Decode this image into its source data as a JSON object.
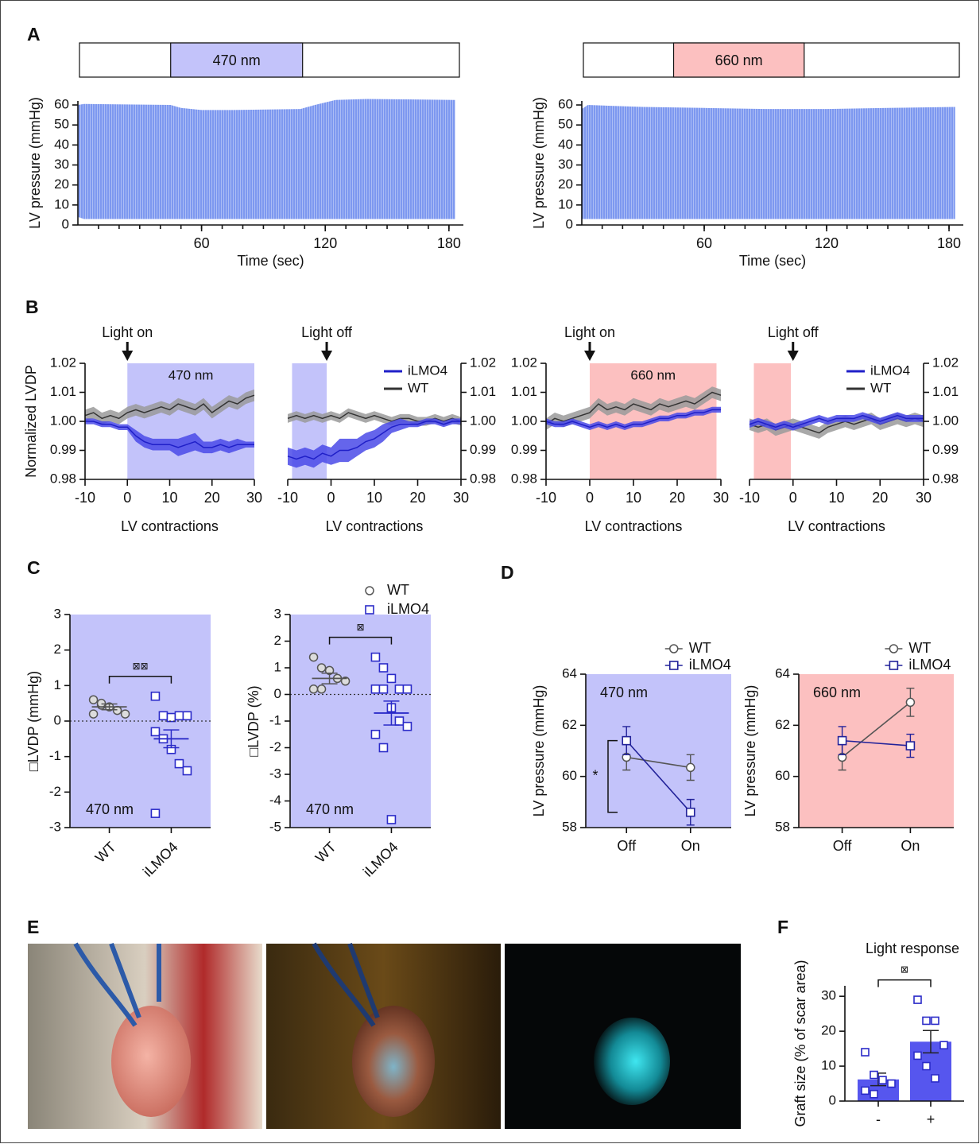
{
  "figure": {
    "photo_panel": "E"
  },
  "chart_data": [
    {
      "type": "area",
      "panel": "A",
      "ylabel": "LV pressure (mmHg)",
      "xlabel": "Time (sec)",
      "xlim": [
        0,
        187
      ],
      "xticks": [
        60,
        120,
        180
      ],
      "minor_step": 10,
      "ylim": [
        0,
        62
      ],
      "yticks": [
        0,
        10,
        20,
        30,
        40,
        50,
        60
      ],
      "light": {
        "label": "470 nm",
        "start": 45,
        "end": 109,
        "color": "#c3c3fa"
      },
      "color": "#7d98f0",
      "x": [
        0,
        3,
        45,
        50,
        60,
        75,
        95,
        108,
        115,
        125,
        140,
        160,
        183
      ],
      "upper": [
        60,
        60.5,
        60,
        58.5,
        57.5,
        57.5,
        57.8,
        58,
        60,
        62.5,
        63,
        62.8,
        62.5
      ],
      "lower": [
        4,
        3,
        3,
        3,
        3,
        3,
        3,
        3,
        3,
        3,
        3,
        3,
        3
      ]
    },
    {
      "type": "area",
      "ylabel": "LV pressure (mmHg)",
      "xlabel": "Time (sec)",
      "xlim": [
        0,
        187
      ],
      "xticks": [
        60,
        120,
        180
      ],
      "minor_step": 10,
      "ylim": [
        0,
        62
      ],
      "yticks": [
        0,
        10,
        20,
        30,
        40,
        50,
        60
      ],
      "light": {
        "label": "660 nm",
        "start": 45,
        "end": 109,
        "color": "#fcc0c0"
      },
      "color": "#7d98f0",
      "x": [
        0,
        3,
        30,
        60,
        90,
        120,
        150,
        183
      ],
      "upper": [
        58,
        60,
        59,
        58.5,
        58,
        58,
        58.5,
        59
      ],
      "lower": [
        3,
        3,
        3,
        3,
        3,
        3,
        3,
        3
      ]
    },
    {
      "type": "line",
      "panel": "B",
      "ylabel": "Normalized LVDP",
      "xlabel": "LV contractions",
      "annotation": "Light on",
      "arrow_at": 0,
      "xlim": [
        -10,
        30
      ],
      "xticks": [
        -10,
        0,
        10,
        20,
        30
      ],
      "ylim": [
        0.98,
        1.02
      ],
      "yticks": [
        0.98,
        0.99,
        {
          "value": 1,
          "label": "1.00"
        },
        1.01,
        1.02
      ],
      "y_axis": "left",
      "light": {
        "label": "470 nm",
        "start": 0,
        "end": 30,
        "color": "#c3c3fa"
      },
      "x": [
        -10,
        -8,
        -6,
        -4,
        -2,
        0,
        2,
        4,
        6,
        8,
        10,
        12,
        14,
        16,
        18,
        20,
        22,
        24,
        26,
        28,
        30
      ],
      "series": [
        {
          "color": "#1f1fc8",
          "band_color": "#4a4ae8",
          "values": [
            1,
            1,
            0.999,
            0.999,
            0.998,
            0.998,
            0.995,
            0.993,
            0.992,
            0.992,
            0.992,
            0.991,
            0.992,
            0.993,
            0.991,
            0.991,
            0.992,
            0.991,
            0.992,
            0.992,
            0.992
          ],
          "errors": [
            0.001,
            0.001,
            0.001,
            0.001,
            0.001,
            0.001,
            0.002,
            0.002,
            0.002,
            0.002,
            0.002,
            0.003,
            0.003,
            0.003,
            0.002,
            0.002,
            0.002,
            0.002,
            0.002,
            0.001,
            0.001
          ]
        },
        {
          "color": "#333333",
          "band_color": "#9a9a9a",
          "values": [
            1.002,
            1.003,
            1.001,
            1.002,
            1.001,
            1.003,
            1.004,
            1.003,
            1.004,
            1.005,
            1.004,
            1.006,
            1.005,
            1.004,
            1.006,
            1.003,
            1.005,
            1.007,
            1.006,
            1.008,
            1.009
          ],
          "errors": [
            0.002,
            0.002,
            0.002,
            0.002,
            0.002,
            0.002,
            0.002,
            0.002,
            0.002,
            0.002,
            0.002,
            0.002,
            0.002,
            0.002,
            0.002,
            0.002,
            0.002,
            0.002,
            0.002,
            0.002,
            0.002
          ]
        }
      ]
    },
    {
      "type": "line",
      "xlabel": "LV contractions",
      "annotation": "Light off",
      "arrow_at": -1,
      "legend": true,
      "xlim": [
        -10,
        30
      ],
      "xticks": [
        -10,
        0,
        10,
        20,
        30
      ],
      "ylim": [
        0.98,
        1.02
      ],
      "yticks": [
        0.98,
        0.99,
        {
          "value": 1,
          "label": "1.00"
        },
        1.01,
        1.02
      ],
      "y_axis": "right",
      "light": {
        "start": -9,
        "end": -1,
        "color": "#c3c3fa"
      },
      "x": [
        -10,
        -8,
        -6,
        -4,
        -2,
        0,
        2,
        4,
        6,
        8,
        10,
        12,
        14,
        16,
        18,
        20,
        22,
        24,
        26,
        28,
        30
      ],
      "series": [
        {
          "name": "iLMO4",
          "color": "#1f1fc8",
          "band_color": "#4a4ae8",
          "values": [
            0.988,
            0.987,
            0.988,
            0.987,
            0.989,
            0.988,
            0.99,
            0.99,
            0.991,
            0.993,
            0.994,
            0.996,
            0.998,
            0.999,
            0.999,
            0.999,
            1,
            1,
            0.999,
            1,
            1
          ],
          "errors": [
            0.003,
            0.003,
            0.003,
            0.003,
            0.003,
            0.003,
            0.004,
            0.004,
            0.003,
            0.003,
            0.003,
            0.003,
            0.002,
            0.002,
            0.001,
            0.001,
            0.001,
            0.001,
            0.001,
            0.001,
            0.001
          ]
        },
        {
          "name": "WT",
          "color": "#333333",
          "band_color": "#9a9a9a",
          "values": [
            1.001,
            1.002,
            1.001,
            1.002,
            1.001,
            1.002,
            1.001,
            1.003,
            1.002,
            1.001,
            1.002,
            1.001,
            1,
            1.001,
            1.001,
            1,
            1,
            1.001,
            1,
            1.001,
            1
          ],
          "errors": [
            0.0015,
            0.0015,
            0.0015,
            0.0015,
            0.0015,
            0.0015,
            0.0015,
            0.0015,
            0.0015,
            0.0015,
            0.0015,
            0.0015,
            0.0015,
            0.0015,
            0.0015,
            0.0015,
            0.0015,
            0.0015,
            0.0015,
            0.0015,
            0.0015
          ]
        }
      ]
    },
    {
      "type": "line",
      "xlabel": "LV contractions",
      "annotation": "Light on",
      "arrow_at": 0,
      "xlim": [
        -10,
        30
      ],
      "xticks": [
        -10,
        0,
        10,
        20,
        30
      ],
      "ylim": [
        0.98,
        1.02
      ],
      "yticks": [
        0.98,
        0.99,
        {
          "value": 1,
          "label": "1.00"
        },
        1.01,
        1.02
      ],
      "y_axis": "left",
      "light": {
        "label": "660 nm",
        "start": 0,
        "end": 29,
        "color": "#fcc0c0"
      },
      "x": [
        -10,
        -8,
        -6,
        -4,
        -2,
        0,
        2,
        4,
        6,
        8,
        10,
        12,
        14,
        16,
        18,
        20,
        22,
        24,
        26,
        28,
        30
      ],
      "series": [
        {
          "color": "#1f1fc8",
          "band_color": "#4a4ae8",
          "values": [
            1,
            0.999,
            0.999,
            1,
            0.999,
            0.998,
            0.999,
            0.998,
            0.999,
            0.998,
            0.999,
            0.999,
            1,
            1.001,
            1.001,
            1.002,
            1.002,
            1.003,
            1.003,
            1.004,
            1.004
          ],
          "errors": [
            0.001,
            0.001,
            0.001,
            0.001,
            0.001,
            0.001,
            0.001,
            0.001,
            0.001,
            0.001,
            0.001,
            0.001,
            0.001,
            0.001,
            0.001,
            0.001,
            0.001,
            0.001,
            0.001,
            0.001,
            0.001
          ]
        },
        {
          "color": "#333333",
          "band_color": "#9a9a9a",
          "values": [
            0.999,
            1.001,
            1,
            1.001,
            1.002,
            1.003,
            1.006,
            1.004,
            1.005,
            1.004,
            1.006,
            1.005,
            1.004,
            1.006,
            1.005,
            1.006,
            1.007,
            1.006,
            1.008,
            1.01,
            1.009
          ],
          "errors": [
            0.002,
            0.002,
            0.002,
            0.002,
            0.002,
            0.002,
            0.002,
            0.002,
            0.002,
            0.002,
            0.002,
            0.002,
            0.002,
            0.002,
            0.002,
            0.002,
            0.002,
            0.002,
            0.002,
            0.002,
            0.002
          ]
        }
      ]
    },
    {
      "type": "line",
      "xlabel": "LV contractions",
      "annotation": "Light off",
      "arrow_at": 0,
      "legend": true,
      "xlim": [
        -10,
        30
      ],
      "xticks": [
        -10,
        0,
        10,
        20,
        30
      ],
      "ylim": [
        0.98,
        1.02
      ],
      "yticks": [
        0.98,
        0.99,
        {
          "value": 1,
          "label": "1.00"
        },
        1.01,
        1.02
      ],
      "y_axis": "right",
      "light": {
        "start": -9,
        "end": -0.5,
        "color": "#fcc0c0"
      },
      "x": [
        -10,
        -8,
        -6,
        -4,
        -2,
        0,
        2,
        4,
        6,
        8,
        10,
        12,
        14,
        16,
        18,
        20,
        22,
        24,
        26,
        28,
        30
      ],
      "series": [
        {
          "name": "iLMO4",
          "color": "#1f1fc8",
          "band_color": "#4a4ae8",
          "values": [
            0.999,
            1,
            0.999,
            0.998,
            0.999,
            0.998,
            0.999,
            1,
            1.001,
            1,
            1.001,
            1.001,
            1.001,
            1.002,
            1.001,
            1,
            1.001,
            1.002,
            1.001,
            1.001,
            1.001
          ],
          "errors": [
            0.0012,
            0.0012,
            0.0012,
            0.0012,
            0.0012,
            0.0012,
            0.0012,
            0.0012,
            0.0012,
            0.0012,
            0.0012,
            0.0012,
            0.0012,
            0.0012,
            0.0012,
            0.0012,
            0.0012,
            0.0012,
            0.0012,
            0.0012,
            0.0012
          ]
        },
        {
          "name": "WT",
          "color": "#333333",
          "band_color": "#9a9a9a",
          "values": [
            0.999,
            0.998,
            0.999,
            0.997,
            0.998,
            0.999,
            0.998,
            0.997,
            0.996,
            0.998,
            0.999,
            1,
            0.999,
            1,
            1.001,
            0.999,
            1,
            1.001,
            1,
            1.001,
            1
          ],
          "errors": [
            0.002,
            0.002,
            0.002,
            0.002,
            0.002,
            0.002,
            0.002,
            0.002,
            0.002,
            0.002,
            0.002,
            0.002,
            0.002,
            0.002,
            0.002,
            0.002,
            0.002,
            0.002,
            0.002,
            0.002,
            0.002
          ]
        }
      ]
    },
    {
      "type": "strip",
      "panel": "C",
      "ylabel": "□LVDP (mmHg)",
      "annotation": "470 nm",
      "significance": "⊠⊠",
      "ylim": [
        -3,
        3
      ],
      "yticks": [
        -3,
        -2,
        -1,
        0,
        1,
        2,
        3
      ],
      "background": "#c3c3fa",
      "categories": [
        "WT",
        "iLMO4"
      ],
      "series": [
        {
          "marker": "circle",
          "color": "#555555",
          "values": [
            0.6,
            0.45,
            0.4,
            0.3,
            0.2,
            0.2,
            0.5
          ],
          "mean": 0.4,
          "sem": 0.08
        },
        {
          "marker": "square",
          "color": "#2b2bc8",
          "values": [
            0.7,
            0.15,
            0.1,
            0.15,
            0.15,
            -0.3,
            -0.5,
            -0.8,
            -1.2,
            -1.4,
            -2.6
          ],
          "mean": -0.5,
          "sem": 0.25
        }
      ]
    },
    {
      "type": "strip",
      "ylabel": "□LVDP  (%)",
      "annotation": "470 nm",
      "significance": "⊠",
      "legend": true,
      "ylim": [
        -5,
        3
      ],
      "yticks": [
        -5,
        -4,
        -3,
        -2,
        -1,
        0,
        1,
        2,
        3
      ],
      "background": "#c3c3fa",
      "categories": [
        "WT",
        "iLMO4"
      ],
      "series": [
        {
          "name": "WT",
          "marker": "circle",
          "color": "#555555",
          "values": [
            1.4,
            1,
            0.9,
            0.6,
            0.5,
            0.2,
            0.2
          ],
          "mean": 0.6,
          "sem": 0.2
        },
        {
          "name": "iLMO4",
          "marker": "square",
          "color": "#2b2bc8",
          "values": [
            1.4,
            1,
            0.6,
            0.2,
            0.2,
            0.2,
            0.2,
            -0.5,
            -1,
            -1.2,
            -1.5,
            -2,
            -4.7
          ],
          "mean": -0.7,
          "sem": 0.45
        }
      ]
    },
    {
      "type": "line",
      "panel": "D",
      "ylabel": "LV pressure (mmHg)",
      "annotation": "470 nm",
      "significance": "*",
      "legend": true,
      "ylim": [
        58,
        64
      ],
      "yticks": [
        58,
        60,
        62,
        64
      ],
      "background": "#c3c3fa",
      "categories": [
        "Off",
        "On"
      ],
      "series": [
        {
          "name": "WT",
          "marker": "circle",
          "color": "#555555",
          "values": [
            60.75,
            60.35
          ],
          "errors": [
            0.5,
            0.5
          ]
        },
        {
          "name": "iLMO4",
          "marker": "square",
          "color": "#22229a",
          "values": [
            61.4,
            58.6
          ],
          "errors": [
            0.55,
            0.5
          ]
        }
      ]
    },
    {
      "type": "line",
      "ylabel": "LV pressure (mmHg)",
      "annotation": "660 nm",
      "legend": true,
      "ylim": [
        58,
        64
      ],
      "yticks": [
        58,
        60,
        62,
        64
      ],
      "background": "#fcc0c0",
      "categories": [
        "Off",
        "On"
      ],
      "series": [
        {
          "name": "WT",
          "marker": "circle",
          "color": "#555555",
          "values": [
            60.75,
            62.9
          ],
          "errors": [
            0.5,
            0.55
          ]
        },
        {
          "name": "iLMO4",
          "marker": "square",
          "color": "#22229a",
          "values": [
            61.4,
            61.2
          ],
          "errors": [
            0.55,
            0.45
          ]
        }
      ]
    },
    {
      "type": "bar",
      "panel": "F",
      "title": "Light response",
      "ylabel": "Graft size (% of scar area)",
      "significance": "⊠",
      "ylim": [
        0,
        33
      ],
      "yticks": [
        0,
        10,
        20,
        30
      ],
      "categories": [
        "-",
        "+"
      ],
      "values": [
        6.2,
        17
      ],
      "errors": [
        1.8,
        3.2
      ],
      "points": [
        [
          14,
          7.5,
          6,
          5,
          3,
          2
        ],
        [
          29,
          23,
          23,
          16,
          13,
          10,
          6.5
        ]
      ],
      "color": "#5656ee",
      "point_color": "#2b2bc8"
    }
  ]
}
